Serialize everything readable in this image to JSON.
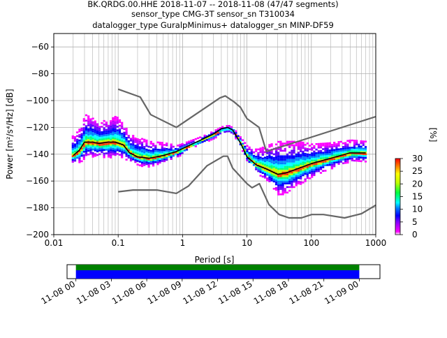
{
  "title_lines": [
    "BK.QRDG.00.HHE   2018-11-07 -- 2018-11-08  (47/47 segments)",
    "sensor_type CMG-3T sensor_sn T310034",
    "datalogger_type GuralpMinimus+ datalogger_sn MINP-DF59"
  ],
  "colors": {
    "noise_model": "#666666",
    "mean": "#000000",
    "grid": "#b0b0b0",
    "bar_green": "#008000",
    "bar_blue": "#0000ff"
  },
  "chart_data": [
    {
      "type": "heatmap",
      "xlabel": "Period [s]",
      "ylabel": "Power [m²/s⁴/Hz] [dB]",
      "xscale": "log",
      "xlim": [
        0.01,
        1000
      ],
      "ylim": [
        -200,
        -50
      ],
      "xticks": [
        0.01,
        0.1,
        1,
        10,
        100,
        1000
      ],
      "xtick_labels": [
        "0.01",
        "0.1",
        "1",
        "10",
        "100",
        "1000"
      ],
      "yticks": [
        -200,
        -180,
        -160,
        -140,
        -120,
        -100,
        -80,
        -60
      ],
      "ytick_labels": [
        "−200",
        "−180",
        "−160",
        "−140",
        "−120",
        "−100",
        "−80",
        "−60"
      ],
      "grid": true,
      "series": [
        {
          "kind": "noise-model",
          "x": [
            0.1,
            0.22,
            0.32,
            0.8,
            3.8,
            4.6,
            6.3,
            7.9,
            10,
            15.4,
            20,
            1000
          ],
          "y": [
            -91.5,
            -97.4,
            -110.5,
            -120,
            -98,
            -96.5,
            -101,
            -105,
            -113.5,
            -120,
            -138,
            -112
          ]
        },
        {
          "kind": "noise-model",
          "x": [
            0.1,
            0.17,
            0.4,
            0.8,
            1.24,
            2.4,
            4.3,
            5,
            6,
            10,
            12,
            15.6,
            21.9,
            31.6,
            45,
            70,
            101,
            154,
            328,
            600,
            1000
          ],
          "y": [
            -168,
            -166.7,
            -166.7,
            -169.2,
            -163.7,
            -148.6,
            -141.5,
            -141.5,
            -150.4,
            -162,
            -165,
            -162,
            -177.5,
            -185,
            -187.5,
            -187.5,
            -185,
            -185,
            -187.5,
            -184.4,
            -178
          ]
        },
        {
          "kind": "mean",
          "x": [
            0.02,
            0.025,
            0.03,
            0.04,
            0.05,
            0.07,
            0.09,
            0.12,
            0.15,
            0.2,
            0.3,
            0.5,
            0.8,
            1.2,
            2,
            3,
            4,
            5,
            6,
            8,
            10,
            14,
            20,
            30,
            40,
            60,
            100,
            200,
            400,
            700
          ],
          "y": [
            -141,
            -137,
            -131,
            -131,
            -132,
            -131,
            -131,
            -133,
            -139,
            -142,
            -143,
            -141,
            -138,
            -134,
            -129,
            -125,
            -121,
            -120,
            -122,
            -132,
            -142,
            -148,
            -151,
            -155,
            -154,
            -151,
            -147,
            -143,
            -139,
            -139
          ]
        }
      ],
      "density": {
        "x": [
          0.02,
          0.025,
          0.03,
          0.04,
          0.05,
          0.07,
          0.09,
          0.12,
          0.15,
          0.2,
          0.3,
          0.5,
          0.8,
          1.2,
          2,
          3,
          4,
          5,
          6,
          8,
          10,
          14,
          20,
          30,
          40,
          60,
          100,
          200,
          400,
          700
        ],
        "y_low": [
          -146,
          -146,
          -142,
          -142,
          -142,
          -142,
          -142,
          -143,
          -145,
          -148,
          -149,
          -146,
          -142,
          -136,
          -131,
          -128,
          -124,
          -123,
          -125,
          -136,
          -146,
          -154,
          -160,
          -170,
          -169,
          -163,
          -157,
          -150,
          -145,
          -145
        ],
        "y_high": [
          -126,
          -120,
          -110,
          -113,
          -115,
          -114,
          -111,
          -118,
          -125,
          -127,
          -130,
          -131,
          -133,
          -130,
          -126,
          -122,
          -119,
          -118,
          -120,
          -128,
          -134,
          -136,
          -133,
          -130,
          -130,
          -130,
          -132,
          -131,
          -129,
          -130
        ]
      },
      "colorbar": {
        "label": "[%]",
        "range": [
          0,
          30
        ],
        "ticks": [
          0,
          5,
          10,
          15,
          20,
          25,
          30
        ],
        "tick_labels": [
          "0",
          "5",
          "10",
          "15",
          "20",
          "25",
          "30"
        ]
      }
    },
    {
      "type": "bar",
      "orientation": "horizontal",
      "xlim": [
        "2018-11-07 23:15",
        "2018-11-09 01:45"
      ],
      "bands": [
        {
          "color": "green",
          "start": "2018-11-08 00:00",
          "end": "2018-11-09 00:00"
        },
        {
          "color": "blue",
          "start": "2018-11-08 00:00",
          "end": "2018-11-09 00:00"
        }
      ],
      "xtick_labels": [
        "11-08 00",
        "11-08 03",
        "11-08 06",
        "11-08 09",
        "11-08 12",
        "11-08 15",
        "11-08 18",
        "11-08 21",
        "11-09 00"
      ]
    }
  ]
}
